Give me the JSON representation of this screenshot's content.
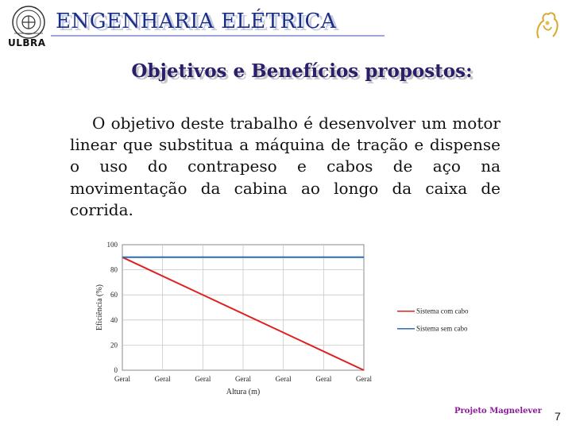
{
  "header": {
    "logo_text": "ULBRA",
    "title": "ENGENHARIA ELÉTRICA"
  },
  "slide": {
    "title": "Objetivos e Benefícios propostos:",
    "paragraph": "O objetivo deste trabalho é desenvolver um motor linear que substitua a máquina de tração e dispense o uso do contrapeso e cabos de aço na movimentação da cabina ao longo da caixa de corrida."
  },
  "chart_data": {
    "type": "line",
    "categories": [
      "Geral",
      "Geral",
      "Geral",
      "Geral",
      "Geral",
      "Geral",
      "Geral"
    ],
    "xlabel": "Altura (m)",
    "ylabel": "Eficiência (%)",
    "ylim": [
      0,
      100
    ],
    "yticks": [
      "0",
      "20",
      "40",
      "60",
      "80",
      "100"
    ],
    "grid": true,
    "legend_position": "right",
    "series": [
      {
        "name": "Sistema com cabo",
        "color": "#e02020",
        "points": [
          [
            0,
            90
          ],
          [
            6,
            0
          ]
        ]
      },
      {
        "name": "Sistema sem cabo",
        "color": "#2a6db4",
        "points": [
          [
            0,
            90
          ],
          [
            6,
            90
          ]
        ]
      }
    ]
  },
  "footer": {
    "brand": "Projeto Magnelever",
    "page": "7"
  }
}
